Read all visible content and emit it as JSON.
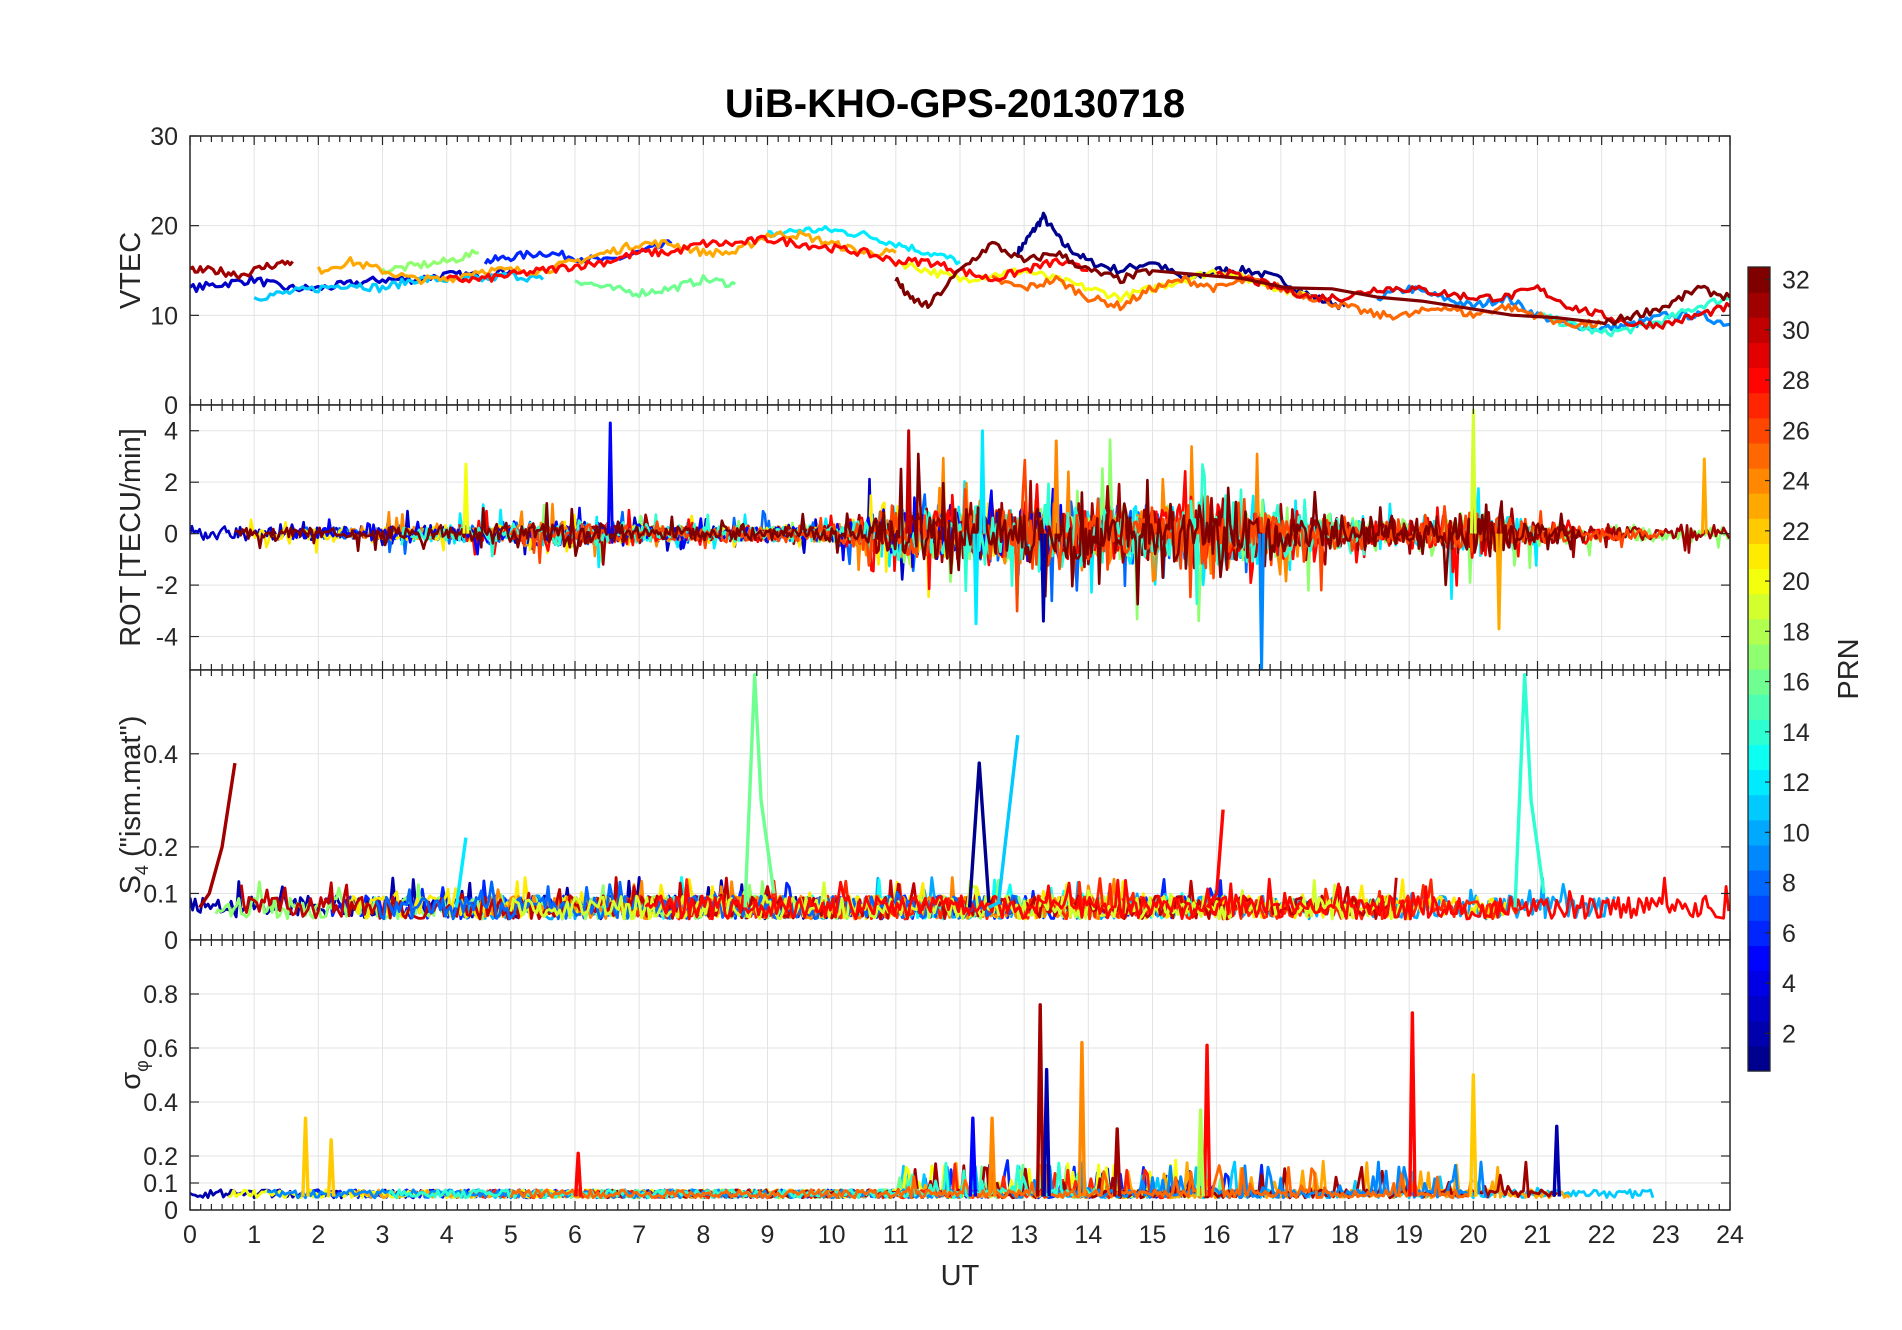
{
  "figure": {
    "title": "UiB-KHO-GPS-20130718"
  },
  "colorbar": {
    "label": "PRN",
    "ticks": [
      "2",
      "4",
      "6",
      "8",
      "10",
      "12",
      "14",
      "16",
      "18",
      "20",
      "22",
      "24",
      "26",
      "28",
      "30",
      "32"
    ],
    "range": [
      1,
      32
    ],
    "colormap": [
      "#00008f",
      "#0000ff",
      "#0080ff",
      "#00ffff",
      "#80ff80",
      "#ffff00",
      "#ff8000",
      "#ff0000",
      "#800000"
    ]
  },
  "chart_data": [
    {
      "type": "line",
      "id": "vtec",
      "ylabel": "VTEC",
      "ylim": [
        0,
        30
      ],
      "yticks": [
        "0",
        "10",
        "20",
        "30"
      ],
      "xlim": [
        0,
        24
      ],
      "grid": true,
      "series_summary": "per-PRN VTEC traces, roughly 12-19 TECU, peak ~21 near 13 UT",
      "series": [
        {
          "prn": 1,
          "x": [
            12.9,
            13.1,
            13.3,
            13.6,
            14.0,
            14.5,
            15.0,
            15.5,
            16.0,
            16.5,
            17.0,
            17.5,
            18.0
          ],
          "y": [
            17,
            19,
            21,
            18,
            16,
            15,
            16,
            14,
            15,
            15,
            14,
            12,
            11
          ]
        },
        {
          "prn": 3,
          "x": [
            0,
            0.5,
            1,
            1.5,
            2,
            2.5,
            3,
            3.5,
            4,
            4.5,
            5
          ],
          "y": [
            13,
            13.5,
            14,
            13,
            13,
            13.5,
            14,
            14,
            14.5,
            14.5,
            15
          ]
        },
        {
          "prn": 6,
          "x": [
            4.6,
            5,
            5.5,
            6,
            6.5,
            7,
            7.5
          ],
          "y": [
            16,
            16.5,
            17,
            16.5,
            16,
            17,
            18
          ]
        },
        {
          "prn": 9,
          "x": [
            18.5,
            19,
            19.5,
            20,
            20.5,
            21,
            21.5,
            22,
            22.5,
            23,
            23.5,
            24
          ],
          "y": [
            12,
            13,
            12,
            11,
            12,
            10,
            9,
            8.5,
            9,
            10,
            10,
            9
          ]
        },
        {
          "prn": 11,
          "x": [
            1,
            1.5,
            2,
            2.5,
            3,
            3.5,
            4,
            4.5,
            5,
            5.5
          ],
          "y": [
            12,
            12.5,
            13,
            13.5,
            13,
            14,
            14,
            14,
            14.5,
            14
          ]
        },
        {
          "prn": 12,
          "x": [
            9,
            9.5,
            10,
            10.5,
            11,
            11.5,
            12
          ],
          "y": [
            19,
            19.5,
            19.5,
            19,
            18,
            17,
            16
          ]
        },
        {
          "prn": 14,
          "x": [
            21,
            21.5,
            22,
            22.5,
            23,
            23.5,
            24
          ],
          "y": [
            10,
            9,
            8,
            8.5,
            9.5,
            11,
            12
          ]
        },
        {
          "prn": 16,
          "x": [
            6,
            6.5,
            7,
            7.5,
            8,
            8.5
          ],
          "y": [
            14,
            13,
            12.5,
            13,
            14,
            13.5
          ]
        },
        {
          "prn": 17,
          "x": [
            3,
            3.5,
            4,
            4.5
          ],
          "y": [
            15,
            15.5,
            16,
            17
          ]
        },
        {
          "prn": 20,
          "x": [
            11,
            11.5,
            12,
            12.5,
            13,
            13.5,
            14,
            14.5,
            15,
            15.5,
            16,
            16.5,
            17,
            17.5
          ],
          "y": [
            16,
            15,
            14,
            14.5,
            15,
            14,
            13,
            12,
            13,
            14,
            15,
            14,
            13,
            12
          ]
        },
        {
          "prn": 23,
          "x": [
            2,
            2.5,
            3,
            3.5,
            4,
            4.5,
            5,
            5.5,
            6,
            6.5,
            7,
            7.5,
            8,
            8.5,
            9,
            9.5,
            10,
            10.5,
            11
          ],
          "y": [
            15,
            16,
            15,
            14,
            14,
            15,
            15,
            15,
            16,
            17,
            18,
            18,
            17,
            17,
            19,
            19,
            18,
            17,
            17
          ]
        },
        {
          "prn": 25,
          "x": [
            12.5,
            13,
            13.5,
            14,
            14.5,
            15,
            15.5,
            16,
            16.5,
            17,
            17.5,
            18,
            18.5,
            19,
            19.5,
            20,
            20.5,
            21,
            21.5,
            22
          ],
          "y": [
            14,
            13,
            14,
            12,
            11,
            13,
            14,
            13,
            14,
            13,
            12,
            11,
            10,
            10,
            11,
            10,
            11,
            10,
            9,
            9
          ]
        },
        {
          "prn": 28,
          "x": [
            4,
            4.5,
            5,
            5.5,
            6,
            6.5,
            7,
            7.5,
            8,
            8.5,
            9,
            9.5,
            10,
            10.5,
            11,
            11.5,
            12,
            12.5,
            13,
            13.5,
            14
          ],
          "y": [
            14,
            14,
            14.5,
            15,
            15.5,
            16,
            17,
            17,
            18,
            18,
            18.5,
            18,
            17.5,
            17,
            16,
            16,
            15,
            14,
            15,
            16,
            15
          ]
        },
        {
          "prn": 29,
          "x": [
            16,
            16.5,
            17,
            17.5,
            18,
            18.5,
            19,
            19.5,
            20,
            20.5,
            21,
            21.5,
            22,
            22.5,
            23,
            23.5,
            24
          ],
          "y": [
            15,
            14,
            13,
            12,
            12,
            13,
            13,
            12.5,
            12,
            12,
            13,
            11,
            10,
            9,
            9,
            10,
            11
          ]
        },
        {
          "prn": 31,
          "x": [
            0,
            0.4,
            0.8,
            1.2,
            1.6
          ],
          "y": [
            15,
            15,
            14.5,
            15.5,
            16
          ]
        },
        {
          "prn": 32,
          "x": [
            11,
            11.2,
            11.5,
            12,
            12.5,
            13,
            13.5,
            14,
            14.5,
            15,
            22,
            22.5,
            23,
            23.5,
            24
          ],
          "y": [
            14,
            12,
            11,
            15,
            18,
            16,
            17,
            15,
            14,
            15,
            9,
            10,
            11,
            13,
            12
          ]
        }
      ]
    },
    {
      "type": "line",
      "id": "rot",
      "ylabel": "ROT [TECU/min]",
      "ylim": [
        -5.3,
        5
      ],
      "yticks": [
        "-4",
        "-2",
        "0",
        "2",
        "4"
      ],
      "xlim": [
        0,
        24
      ],
      "grid": true,
      "series_summary": "rate of TEC per PRN, mostly within ±1, bursts to ±4 between 11 and 21 UT, min ~-5.3 near 16.7 UT",
      "envelope": [
        {
          "x": [
            0,
            2,
            4,
            6,
            8,
            10,
            11,
            12,
            13,
            14,
            15,
            16,
            17,
            18,
            19,
            20,
            21,
            22,
            23,
            24
          ],
          "amp": [
            0.6,
            0.6,
            0.8,
            1.2,
            0.6,
            0.8,
            2.5,
            2.5,
            3,
            2.8,
            2.5,
            3.5,
            2.5,
            1.5,
            1.5,
            2.5,
            1,
            0.8,
            0.8,
            0.6
          ]
        }
      ],
      "spikes": [
        {
          "x": 4.3,
          "y": 2.7,
          "prn": 20
        },
        {
          "x": 6.55,
          "y": 4.3,
          "prn": 5
        },
        {
          "x": 11.2,
          "y": 4.0,
          "prn": 30
        },
        {
          "x": 12.25,
          "y": -3.5,
          "prn": 12
        },
        {
          "x": 12.35,
          "y": 4.0,
          "prn": 12
        },
        {
          "x": 13.5,
          "y": 3.6,
          "prn": 24
        },
        {
          "x": 13.3,
          "y": -3.4,
          "prn": 2
        },
        {
          "x": 16.7,
          "y": -5.3,
          "prn": 9
        },
        {
          "x": 20.0,
          "y": 4.8,
          "prn": 19
        },
        {
          "x": 20.4,
          "y": -3.7,
          "prn": 23
        },
        {
          "x": 23.6,
          "y": 2.9,
          "prn": 23
        }
      ]
    },
    {
      "type": "line",
      "id": "s4",
      "ylabel": "S4 (\"ism.mat\")",
      "ylabel_main": "S",
      "ylabel_sub": "4",
      "ylabel_rest": " (\"ism.mat\")",
      "ylim": [
        0,
        0.58
      ],
      "yticks": [
        "0",
        "0.1",
        "0.2",
        "0.4"
      ],
      "xlim": [
        0,
        24
      ],
      "grid": true,
      "series_summary": "S4 amplitude scintillation per PRN, baseline ~0.05-0.1, spikes to 0.38-0.57",
      "spikes": [
        {
          "x": [
            0.3,
            0.5,
            0.7
          ],
          "y": [
            0.1,
            0.2,
            0.38
          ],
          "prn": 31
        },
        {
          "x": [
            8.8,
            8.9,
            9.1
          ],
          "y": [
            0.57,
            0.3,
            0.1
          ],
          "prn": 16
        },
        {
          "x": [
            12.3,
            12.45
          ],
          "y": [
            0.38,
            0.08
          ],
          "prn": 1
        },
        {
          "x": [
            12.6,
            12.9
          ],
          "y": [
            0.08,
            0.44
          ],
          "prn": 11
        },
        {
          "x": [
            16.0,
            16.1
          ],
          "y": [
            0.1,
            0.28
          ],
          "prn": 28
        },
        {
          "x": [
            20.8,
            20.9,
            21.1
          ],
          "y": [
            0.57,
            0.3,
            0.1
          ],
          "prn": 14
        },
        {
          "x": [
            4.3
          ],
          "y": [
            0.22
          ],
          "prn": 12
        }
      ]
    },
    {
      "type": "line",
      "id": "sigphi",
      "ylabel": "σφ",
      "ylabel_main": "σ",
      "ylabel_sub": "φ",
      "ylim": [
        0,
        1
      ],
      "yticks": [
        "0",
        "0.1",
        "0.2",
        "0.4",
        "0.6",
        "0.8"
      ],
      "xlabel": "UT",
      "xticks": [
        "0",
        "1",
        "2",
        "3",
        "4",
        "5",
        "6",
        "7",
        "8",
        "9",
        "10",
        "11",
        "12",
        "13",
        "14",
        "15",
        "16",
        "17",
        "18",
        "19",
        "20",
        "21",
        "22",
        "23",
        "24"
      ],
      "xlim": [
        0,
        24
      ],
      "grid": true,
      "series_summary": "phase scintillation index per PRN, baseline ~0.05, spikes up to ~0.76",
      "spikes": [
        {
          "x": 1.8,
          "y": 0.34,
          "prn": 22
        },
        {
          "x": 2.2,
          "y": 0.26,
          "prn": 22
        },
        {
          "x": 6.05,
          "y": 0.21,
          "prn": 28
        },
        {
          "x": 12.2,
          "y": 0.34,
          "prn": 5
        },
        {
          "x": 12.5,
          "y": 0.34,
          "prn": 24
        },
        {
          "x": 13.25,
          "y": 0.76,
          "prn": 31
        },
        {
          "x": 13.35,
          "y": 0.52,
          "prn": 2
        },
        {
          "x": 13.9,
          "y": 0.62,
          "prn": 24
        },
        {
          "x": 14.45,
          "y": 0.3,
          "prn": 31
        },
        {
          "x": 15.85,
          "y": 0.61,
          "prn": 28
        },
        {
          "x": 15.75,
          "y": 0.37,
          "prn": 18
        },
        {
          "x": 19.05,
          "y": 0.73,
          "prn": 28
        },
        {
          "x": 20.0,
          "y": 0.5,
          "prn": 22
        },
        {
          "x": 21.3,
          "y": 0.31,
          "prn": 2
        }
      ]
    }
  ]
}
